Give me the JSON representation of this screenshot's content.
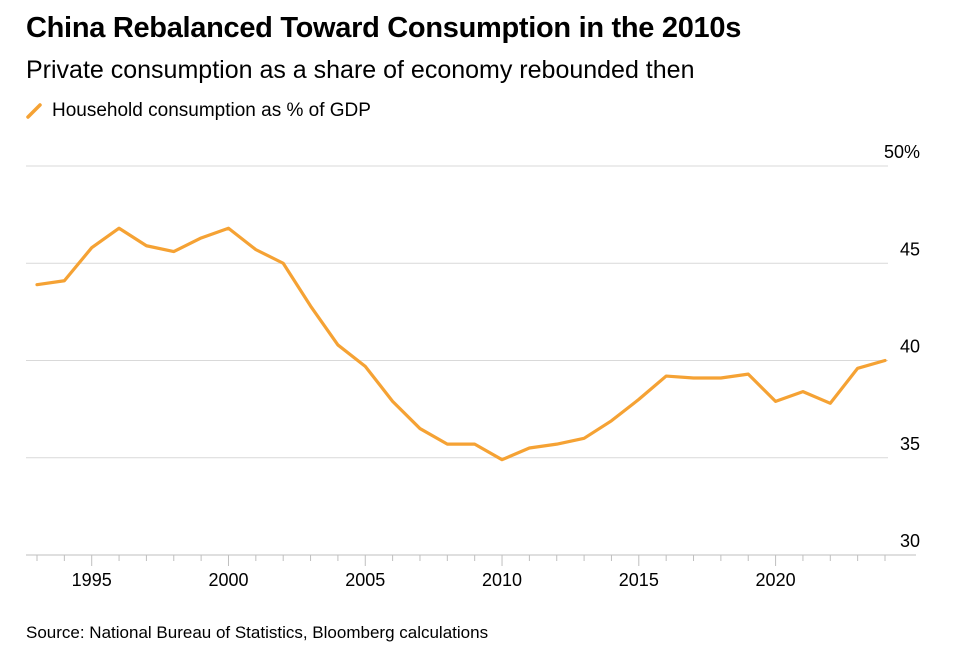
{
  "chart_data": {
    "type": "line",
    "title": "China Rebalanced Toward Consumption in the 2010s",
    "subtitle": "Private consumption as a share of economy rebounded then",
    "xlabel": "",
    "ylabel": "",
    "xlim": [
      1993,
      2024
    ],
    "ylim": [
      30,
      50
    ],
    "yticks": [
      30,
      35,
      40,
      45,
      50
    ],
    "ytick_labels": [
      "30",
      "35",
      "40",
      "45",
      "50%"
    ],
    "xticks": [
      1995,
      2000,
      2005,
      2010,
      2015,
      2020
    ],
    "xtick_labels": [
      "1995",
      "2000",
      "2005",
      "2010",
      "2015",
      "2020"
    ],
    "grid": true,
    "legend_position": "top-left",
    "series": [
      {
        "name": "Household consumption as % of GDP",
        "color": "#f5a234",
        "x": [
          1993,
          1994,
          1995,
          1996,
          1997,
          1998,
          1999,
          2000,
          2001,
          2002,
          2003,
          2004,
          2005,
          2006,
          2007,
          2008,
          2009,
          2010,
          2011,
          2012,
          2013,
          2014,
          2015,
          2016,
          2017,
          2018,
          2019,
          2020,
          2021,
          2022,
          2023,
          2024
        ],
        "values": [
          43.9,
          44.1,
          45.8,
          46.8,
          45.9,
          45.6,
          46.3,
          46.8,
          45.7,
          45.0,
          42.8,
          40.8,
          39.7,
          37.9,
          36.5,
          35.7,
          35.7,
          34.9,
          35.5,
          35.7,
          36.0,
          36.9,
          38.0,
          39.2,
          39.1,
          39.1,
          39.3,
          37.9,
          38.4,
          37.8,
          39.6,
          40.0
        ]
      }
    ]
  },
  "source": "Source: National Bureau of Statistics, Bloomberg calculations",
  "colors": {
    "line": "#f5a234",
    "grid": "#d9d9d9",
    "axis": "#bfbfbf",
    "text": "#000000"
  }
}
